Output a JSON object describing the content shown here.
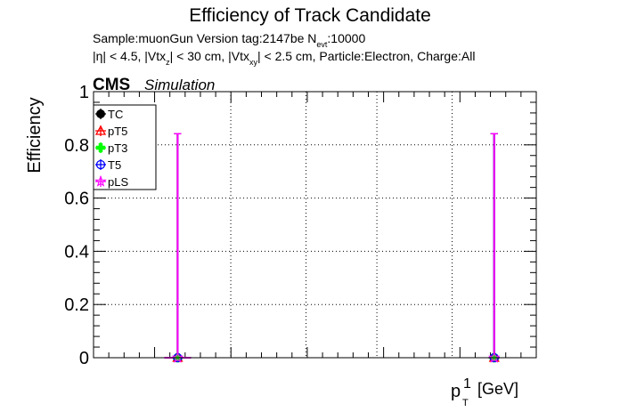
{
  "chart_data": {
    "type": "scatter",
    "title": "Efficiency of Track Candidate",
    "subtitle_line1": {
      "prefix": "Sample:muonGun   Version tag:2147be  N",
      "sub": "evt",
      "suffix": ":10000"
    },
    "subtitle_line2": {
      "p1": "|η| < 4.5, |Vtx",
      "s1": "z",
      "p2": "| < 30 cm, |Vtx",
      "s2": "xy",
      "p3": "| < 2.5 cm, Particle:Electron, Charge:All"
    },
    "cms_label": "CMS",
    "simulation_label": "Simulation",
    "ylabel": "Efficiency",
    "xlabel": {
      "main": "p",
      "sup": "1",
      "sub": "T",
      "unit": "[GeV]"
    },
    "ylim": [
      0,
      1
    ],
    "y_ticks": [
      "0",
      "0.2",
      "0.4",
      "0.6",
      "0.8",
      "1"
    ],
    "x_ticks_shown": false,
    "grid": true,
    "legend_position": "top-left",
    "series": [
      {
        "name": "TC",
        "color": "#000000",
        "marker": "filled-circle"
      },
      {
        "name": "pT5",
        "color": "#ff0000",
        "marker": "open-triangle"
      },
      {
        "name": "pT3",
        "color": "#00ff00",
        "marker": "filled-cross"
      },
      {
        "name": "T5",
        "color": "#0000ff",
        "marker": "open-circle"
      },
      {
        "name": "pLS",
        "color": "#ff00ff",
        "marker": "open-star"
      }
    ],
    "points": [
      {
        "x_fraction": 0.19,
        "y": 0,
        "y_err_up": 0.842,
        "x_err_fraction": 0.03
      },
      {
        "x_fraction": 0.905,
        "y": 0,
        "y_err_up": 0.842,
        "x_err_fraction": 0.012
      }
    ]
  }
}
